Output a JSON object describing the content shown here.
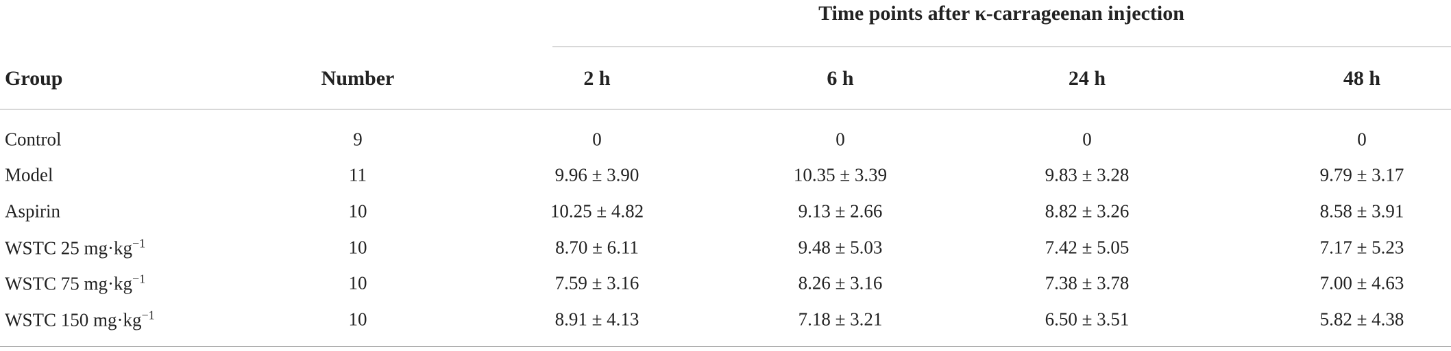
{
  "table": {
    "spanner": "Time points after κ-carrageenan injection",
    "header": [
      "Group",
      "Number",
      "2 h",
      "6 h",
      "24 h",
      "48 h"
    ],
    "rows": [
      [
        "Control",
        "9",
        "0",
        "0",
        "0",
        "0"
      ],
      [
        "Model",
        "11",
        "9.96 ± 3.90",
        "10.35 ± 3.39",
        "9.83 ± 3.28",
        "9.79 ± 3.17"
      ],
      [
        "Aspirin",
        "10",
        "10.25 ± 4.82",
        "9.13 ± 2.66",
        "8.82 ± 3.26",
        "8.58 ± 3.91"
      ],
      [
        {
          "text": "WSTC 25 mg·kg",
          "sup": "−1"
        },
        "10",
        "8.70 ± 6.11",
        "9.48 ± 5.03",
        "7.42 ± 5.05",
        "7.17 ± 5.23"
      ],
      [
        {
          "text": "WSTC 75 mg·kg",
          "sup": "−1"
        },
        "10",
        "7.59 ± 3.16",
        "8.26 ± 3.16",
        "7.38 ± 3.78",
        "7.00 ± 4.63"
      ],
      [
        {
          "text": "WSTC 150 mg·kg",
          "sup": "−1"
        },
        "10",
        "8.91 ± 4.13",
        "7.18 ± 3.21",
        "6.50 ± 3.51",
        "5.82 ± 4.38"
      ]
    ]
  }
}
